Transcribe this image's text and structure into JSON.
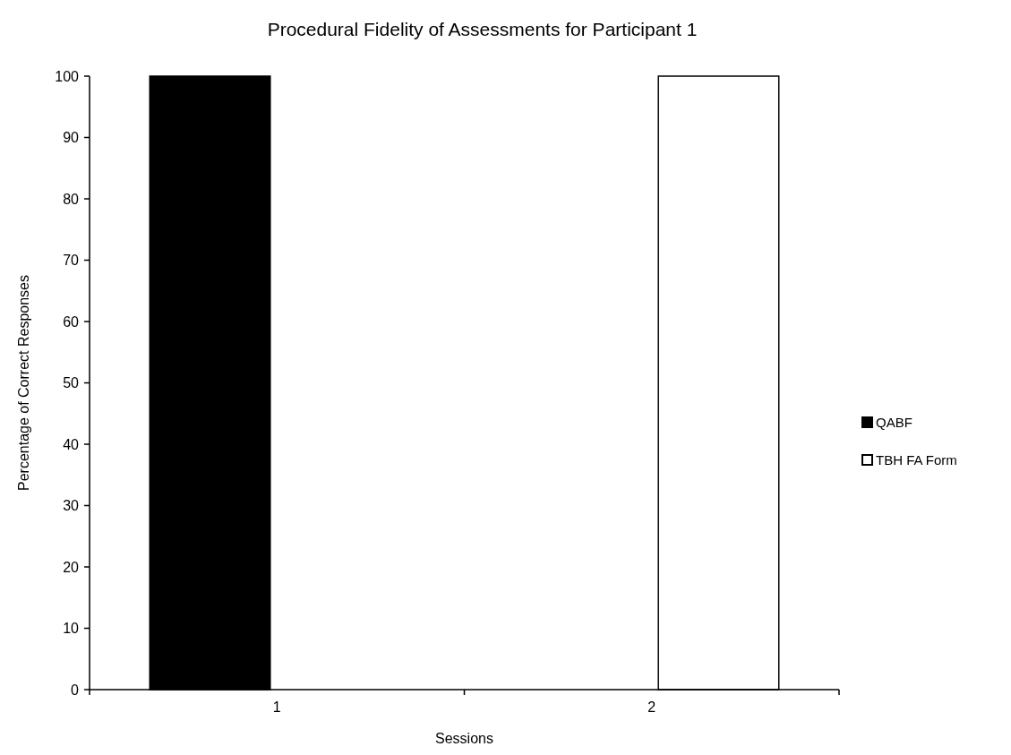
{
  "chart_data": {
    "type": "bar",
    "title": "Procedural Fidelity of Assessments for Participant 1",
    "xlabel": "Sessions",
    "ylabel": "Percentage of Correct Responses",
    "categories": [
      "1",
      "2"
    ],
    "series": [
      {
        "name": "QABF",
        "color": "#000000",
        "values": [
          100,
          null
        ]
      },
      {
        "name": "TBH FA Form",
        "color": "#ffffff",
        "values": [
          null,
          100
        ]
      }
    ],
    "ylim": [
      0,
      100
    ],
    "yticks": [
      0,
      10,
      20,
      30,
      40,
      50,
      60,
      70,
      80,
      90,
      100
    ],
    "grid": false,
    "legend": "right"
  }
}
